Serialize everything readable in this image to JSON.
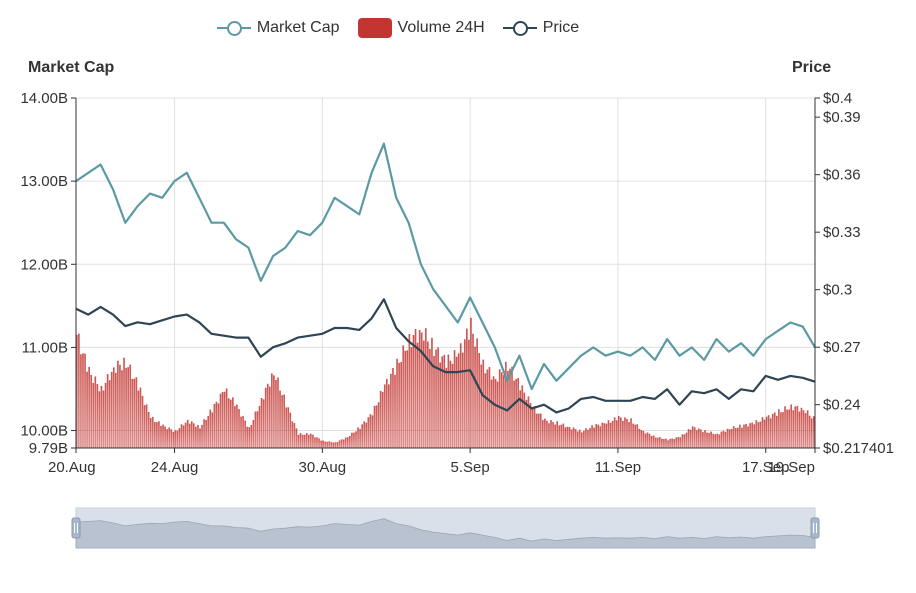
{
  "legend": {
    "market_cap": "Market Cap",
    "volume": "Volume 24H",
    "price": "Price"
  },
  "colors": {
    "market_cap": "#5b9aa4",
    "volume": "#c23531",
    "price": "#2f4554",
    "grid": "#e0e0e0",
    "axis": "#333333",
    "zoom_bg": "#d9e0ea",
    "zoom_fill": "#b8c2d0"
  },
  "chart_data": {
    "type": "line",
    "title": "",
    "x_labels": [
      "20.Aug",
      "24.Aug",
      "30.Aug",
      "5.Sep",
      "11.Sep",
      "17.Sep",
      "19.Sep"
    ],
    "x_label_days": [
      0,
      4,
      10,
      16,
      22,
      28,
      30
    ],
    "x_range_days": [
      0,
      30
    ],
    "left_axis": {
      "title": "Market Cap",
      "min": 9.79,
      "max": 14.0,
      "ticks": [
        {
          "value": 14.0,
          "label": "14.00B"
        },
        {
          "value": 13.0,
          "label": "13.00B"
        },
        {
          "value": 12.0,
          "label": "12.00B"
        },
        {
          "value": 11.0,
          "label": "11.00B"
        },
        {
          "value": 10.0,
          "label": "10.00B"
        },
        {
          "value": 9.79,
          "label": "9.79B"
        }
      ]
    },
    "right_axis": {
      "title": "Price",
      "min": 0.217401,
      "max": 0.4,
      "ticks": [
        {
          "value": 0.4,
          "label": "$0.4"
        },
        {
          "value": 0.39,
          "label": "$0.39"
        },
        {
          "value": 0.36,
          "label": "$0.36"
        },
        {
          "value": 0.33,
          "label": "$0.33"
        },
        {
          "value": 0.3,
          "label": "$0.3"
        },
        {
          "value": 0.27,
          "label": "$0.27"
        },
        {
          "value": 0.24,
          "label": "$0.24"
        },
        {
          "value": 0.217401,
          "label": "$0.217401"
        }
      ]
    },
    "series": [
      {
        "name": "Market Cap",
        "axis": "left",
        "unit": "B",
        "days": [
          0,
          0.5,
          1,
          1.5,
          2,
          2.5,
          3,
          3.5,
          4,
          4.5,
          5,
          5.5,
          6,
          6.5,
          7,
          7.5,
          8,
          8.5,
          9,
          9.5,
          10,
          10.5,
          11,
          11.5,
          12,
          12.5,
          13,
          13.5,
          14,
          14.5,
          15,
          15.5,
          16,
          16.5,
          17,
          17.5,
          18,
          18.5,
          19,
          19.5,
          20,
          20.5,
          21,
          21.5,
          22,
          22.5,
          23,
          23.5,
          24,
          24.5,
          25,
          25.5,
          26,
          26.5,
          27,
          27.5,
          28,
          28.5,
          29,
          29.5,
          30
        ],
        "values": [
          13.0,
          13.1,
          13.2,
          12.9,
          12.5,
          12.7,
          12.85,
          12.8,
          13.0,
          13.1,
          12.8,
          12.5,
          12.5,
          12.3,
          12.2,
          11.8,
          12.1,
          12.2,
          12.4,
          12.35,
          12.5,
          12.8,
          12.7,
          12.6,
          13.1,
          13.45,
          12.8,
          12.5,
          12.0,
          11.7,
          11.5,
          11.3,
          11.6,
          11.3,
          11.0,
          10.6,
          10.9,
          10.5,
          10.8,
          10.6,
          10.75,
          10.9,
          11.0,
          10.9,
          10.95,
          10.9,
          11.0,
          10.85,
          11.1,
          10.9,
          11.0,
          10.85,
          11.1,
          10.95,
          11.05,
          10.9,
          11.1,
          11.2,
          11.3,
          11.25,
          11.0
        ]
      },
      {
        "name": "Price",
        "axis": "right",
        "unit": "$",
        "days": [
          0,
          0.5,
          1,
          1.5,
          2,
          2.5,
          3,
          3.5,
          4,
          4.5,
          5,
          5.5,
          6,
          6.5,
          7,
          7.5,
          8,
          8.5,
          9,
          9.5,
          10,
          10.5,
          11,
          11.5,
          12,
          12.5,
          13,
          13.5,
          14,
          14.5,
          15,
          15.5,
          16,
          16.5,
          17,
          17.5,
          18,
          18.5,
          19,
          19.5,
          20,
          20.5,
          21,
          21.5,
          22,
          22.5,
          23,
          23.5,
          24,
          24.5,
          25,
          25.5,
          26,
          26.5,
          27,
          27.5,
          28,
          28.5,
          29,
          29.5,
          30
        ],
        "values": [
          0.29,
          0.287,
          0.291,
          0.287,
          0.281,
          0.283,
          0.282,
          0.284,
          0.286,
          0.287,
          0.283,
          0.277,
          0.276,
          0.275,
          0.275,
          0.265,
          0.27,
          0.272,
          0.275,
          0.276,
          0.277,
          0.28,
          0.28,
          0.279,
          0.285,
          0.295,
          0.28,
          0.273,
          0.268,
          0.26,
          0.257,
          0.257,
          0.258,
          0.245,
          0.24,
          0.237,
          0.243,
          0.238,
          0.24,
          0.236,
          0.238,
          0.243,
          0.244,
          0.242,
          0.242,
          0.242,
          0.244,
          0.243,
          0.248,
          0.24,
          0.247,
          0.246,
          0.248,
          0.243,
          0.248,
          0.247,
          0.255,
          0.253,
          0.255,
          0.254,
          0.252
        ]
      },
      {
        "name": "Volume 24H",
        "axis": "none",
        "unit": "relative",
        "days": [
          0,
          0.5,
          1,
          1.5,
          2,
          2.5,
          3,
          3.5,
          4,
          4.5,
          5,
          5.5,
          6,
          6.5,
          7,
          7.5,
          8,
          8.5,
          9,
          9.5,
          10,
          10.5,
          11,
          11.5,
          12,
          12.5,
          13,
          13.5,
          14,
          14.5,
          15,
          15.5,
          16,
          16.5,
          17,
          17.5,
          18,
          18.5,
          19,
          19.5,
          20,
          20.5,
          21,
          21.5,
          22,
          22.5,
          23,
          23.5,
          24,
          24.5,
          25,
          25.5,
          26,
          26.5,
          27,
          27.5,
          28,
          28.5,
          29,
          29.5,
          30
        ],
        "values": [
          0.82,
          0.55,
          0.42,
          0.58,
          0.62,
          0.45,
          0.22,
          0.16,
          0.12,
          0.2,
          0.15,
          0.28,
          0.42,
          0.3,
          0.14,
          0.35,
          0.55,
          0.32,
          0.1,
          0.1,
          0.05,
          0.04,
          0.08,
          0.15,
          0.25,
          0.45,
          0.6,
          0.78,
          0.85,
          0.72,
          0.62,
          0.68,
          0.88,
          0.6,
          0.5,
          0.6,
          0.45,
          0.3,
          0.2,
          0.18,
          0.15,
          0.12,
          0.16,
          0.18,
          0.22,
          0.2,
          0.12,
          0.08,
          0.06,
          0.08,
          0.15,
          0.12,
          0.1,
          0.14,
          0.16,
          0.18,
          0.22,
          0.26,
          0.3,
          0.28,
          0.2
        ]
      }
    ]
  }
}
